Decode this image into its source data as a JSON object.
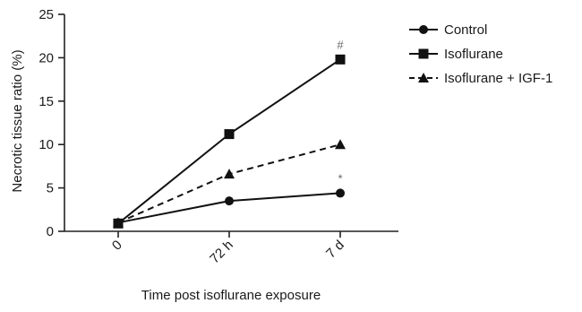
{
  "chart_data": {
    "type": "line",
    "x_categories": [
      "0",
      "72 h",
      "7 d"
    ],
    "xlabel": "Time post isoflurane exposure",
    "ylabel": "Necrotic tissue ratio (%)",
    "ylim": [
      0,
      25
    ],
    "y_ticks": [
      0,
      5,
      10,
      15,
      20,
      25
    ],
    "grid": false,
    "legend_position": "top-right",
    "series": [
      {
        "name": "Control",
        "values": [
          1.0,
          3.5,
          4.4
        ],
        "marker": "circle",
        "line_style": "solid",
        "color": "#111111"
      },
      {
        "name": "Isoflurane",
        "values": [
          0.9,
          11.2,
          19.8
        ],
        "marker": "square",
        "line_style": "solid",
        "color": "#111111"
      },
      {
        "name": "Isoflurane + IGF-1",
        "values": [
          1.0,
          6.6,
          10.0
        ],
        "marker": "triangle",
        "line_style": "dashed",
        "color": "#111111"
      }
    ],
    "annotations": [
      {
        "text": "#",
        "series": "Isoflurane",
        "category": "7 d"
      },
      {
        "text": "*",
        "series": "Control",
        "category": "7 d"
      }
    ]
  }
}
